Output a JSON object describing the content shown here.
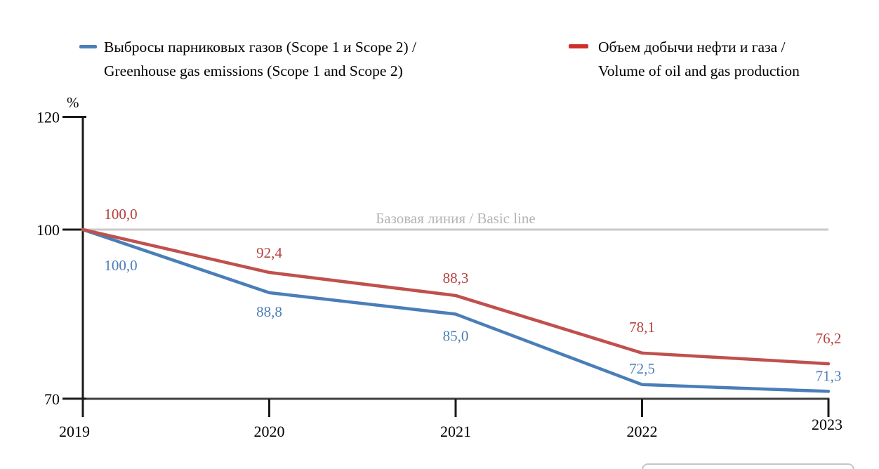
{
  "legend": {
    "items": [
      {
        "swatch_color": "#4A7EB8",
        "label_ru": "Выбросы парниковых газов (Scope 1 и Scope 2) /",
        "label_en": "Greenhouse gas emissions (Scope 1 and Scope 2)"
      },
      {
        "swatch_color": "#D02E2A",
        "label_ru": "Объем добычи нефти и газа /",
        "label_en": "Volume of oil and gas production"
      }
    ]
  },
  "axis": {
    "unit_label": "%",
    "axis_color": "#1A1A1A",
    "x_axis_color": "#3F3F3F",
    "tick_label_color": "#000000"
  },
  "baseline": {
    "label": "Базовая линия / Basic line",
    "value": 100,
    "line_color": "#C9C9C9",
    "label_color": "#B4B4B8"
  },
  "chart_data": {
    "type": "line",
    "x": [
      "2019",
      "2020",
      "2021",
      "2022",
      "2023"
    ],
    "ylabel": "%",
    "ylim": [
      70,
      120
    ],
    "y_ticks": [
      120,
      100,
      70
    ],
    "grid": false,
    "legend_position": "top",
    "series": [
      {
        "name": "Выбросы парниковых газов (Scope 1 и Scope 2) / Greenhouse gas emissions (Scope 1 and Scope 2)",
        "color": "#4A7EB8",
        "label_color": "#4A7EB8",
        "values": [
          100.0,
          88.8,
          85.0,
          72.5,
          71.3
        ],
        "point_labels": [
          "100,0",
          "88,8",
          "85,0",
          "72,5",
          "71,3"
        ]
      },
      {
        "name": "Объем добычи нефти и газа / Volume of oil and gas production",
        "color": "#C0504D",
        "label_color": "#B5413D",
        "values": [
          100.0,
          92.4,
          88.3,
          78.1,
          76.2
        ],
        "point_labels": [
          "100,0",
          "92,4",
          "88,3",
          "78,1",
          "76,2"
        ]
      }
    ],
    "annotations": [
      {
        "text": "Базовая линия / Basic line",
        "y": 100,
        "position": "above-line-center"
      }
    ]
  }
}
